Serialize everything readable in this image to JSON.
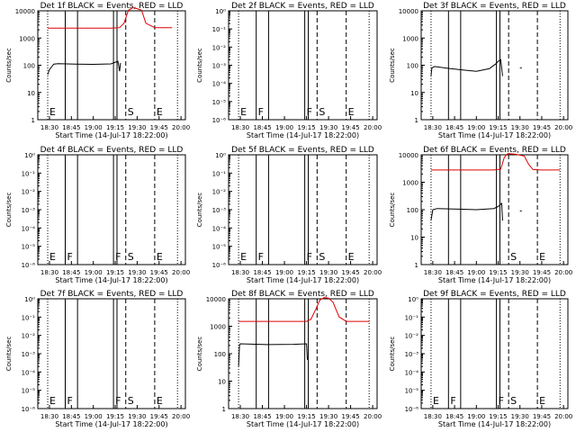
{
  "figure": {
    "xtick_labels": [
      "18:30",
      "18:45",
      "19:00",
      "19:15",
      "19:30",
      "19:45",
      "20:00"
    ],
    "xlabel": "Start Time (14-Jul-17 18:22:00)",
    "ylabel": "Counts/sec",
    "log_ticks_rate": [
      "1",
      "10",
      "100",
      "1000",
      "10000"
    ],
    "log_ticks_empty": [
      "10⁰",
      "10⁻¹",
      "10⁻²",
      "10⁻³",
      "10⁻⁴",
      "10⁻⁵",
      "10⁻⁶"
    ],
    "event_labels": {
      "E": "E",
      "F": "F",
      "S": "S"
    },
    "colors": {
      "events": "#000000",
      "lld": "#e00000"
    }
  },
  "chart_data": [
    {
      "title": "Det 1f BLACK = Events, RED = LLD",
      "type": "line",
      "yscale": "log",
      "ylim": [
        1,
        10000
      ],
      "series": [
        {
          "name": "Events",
          "x": [
            18.48,
            18.5,
            18.55,
            18.6,
            18.8,
            19.0,
            19.2,
            19.28,
            19.3,
            19.31
          ],
          "y": [
            45,
            70,
            110,
            115,
            110,
            108,
            112,
            140,
            60,
            120
          ]
        },
        {
          "name": "LLD",
          "x": [
            18.48,
            18.55,
            19.0,
            19.2,
            19.3,
            19.35,
            19.4,
            19.45,
            19.5,
            19.55,
            19.6,
            19.7,
            19.9
          ],
          "y": [
            2300,
            2300,
            2300,
            2300,
            2400,
            3500,
            10500,
            13000,
            12000,
            10500,
            3500,
            2400,
            2400
          ]
        }
      ],
      "vlines": [
        {
          "x": 18.48,
          "style": "dotted",
          "label": "E"
        },
        {
          "x": 18.68,
          "style": "solid",
          "label": ""
        },
        {
          "x": 18.82,
          "style": "solid",
          "label": ""
        },
        {
          "x": 19.23,
          "style": "solid",
          "label": ""
        },
        {
          "x": 19.27,
          "style": "solid",
          "label": ""
        },
        {
          "x": 19.37,
          "style": "dashed",
          "label": "S"
        },
        {
          "x": 19.7,
          "style": "dashed",
          "label": "E"
        },
        {
          "x": 19.96,
          "style": "dotted",
          "label": ""
        }
      ]
    },
    {
      "title": "Det 2f BLACK = Events, RED = LLD",
      "type": "line",
      "yscale": "log",
      "ylim": [
        1e-06,
        1
      ],
      "series": [],
      "vlines": [
        {
          "x": 18.48,
          "style": "dotted",
          "label": "E"
        },
        {
          "x": 18.68,
          "style": "solid",
          "label": "F"
        },
        {
          "x": 18.82,
          "style": "solid",
          "label": ""
        },
        {
          "x": 19.23,
          "style": "solid",
          "label": "F"
        },
        {
          "x": 19.27,
          "style": "solid",
          "label": ""
        },
        {
          "x": 19.37,
          "style": "dashed",
          "label": "S"
        },
        {
          "x": 19.7,
          "style": "dashed",
          "label": "E"
        },
        {
          "x": 19.96,
          "style": "dotted",
          "label": ""
        }
      ]
    },
    {
      "title": "Det 3f BLACK = Events, RED = LLD",
      "type": "line",
      "yscale": "log",
      "ylim": [
        1,
        10000
      ],
      "series": [
        {
          "name": "Events",
          "x": [
            18.48,
            18.49,
            18.52,
            18.7,
            19.0,
            19.15,
            19.22,
            19.25,
            19.28,
            19.3
          ],
          "y": [
            40,
            80,
            90,
            75,
            60,
            75,
            110,
            140,
            160,
            40
          ]
        },
        {
          "name": "Events",
          "x": [
            19.5,
            19.52
          ],
          "y": [
            80,
            80
          ]
        }
      ],
      "vlines": [
        {
          "x": 18.48,
          "style": "dotted",
          "label": ""
        },
        {
          "x": 18.68,
          "style": "solid",
          "label": ""
        },
        {
          "x": 18.82,
          "style": "solid",
          "label": ""
        },
        {
          "x": 19.23,
          "style": "solid",
          "label": ""
        },
        {
          "x": 19.27,
          "style": "solid",
          "label": ""
        },
        {
          "x": 19.37,
          "style": "dashed",
          "label": ""
        },
        {
          "x": 19.7,
          "style": "dashed",
          "label": ""
        },
        {
          "x": 19.96,
          "style": "dotted",
          "label": ""
        }
      ]
    },
    {
      "title": "Det 4f BLACK = Events, RED = LLD",
      "type": "line",
      "yscale": "log",
      "ylim": [
        1e-06,
        1
      ],
      "series": [],
      "vlines": [
        {
          "x": 18.48,
          "style": "dotted",
          "label": "E"
        },
        {
          "x": 18.68,
          "style": "solid",
          "label": "F"
        },
        {
          "x": 18.82,
          "style": "solid",
          "label": ""
        },
        {
          "x": 19.23,
          "style": "solid",
          "label": "F"
        },
        {
          "x": 19.27,
          "style": "solid",
          "label": ""
        },
        {
          "x": 19.37,
          "style": "dashed",
          "label": "S"
        },
        {
          "x": 19.7,
          "style": "dashed",
          "label": "E"
        },
        {
          "x": 19.96,
          "style": "dotted",
          "label": ""
        }
      ]
    },
    {
      "title": "Det 5f BLACK = Events, RED = LLD",
      "type": "line",
      "yscale": "log",
      "ylim": [
        1e-06,
        1
      ],
      "series": [],
      "vlines": [
        {
          "x": 18.48,
          "style": "dotted",
          "label": "E"
        },
        {
          "x": 18.68,
          "style": "solid",
          "label": "F"
        },
        {
          "x": 18.82,
          "style": "solid",
          "label": ""
        },
        {
          "x": 19.23,
          "style": "solid",
          "label": "F"
        },
        {
          "x": 19.27,
          "style": "solid",
          "label": ""
        },
        {
          "x": 19.37,
          "style": "dashed",
          "label": "S"
        },
        {
          "x": 19.7,
          "style": "dashed",
          "label": "E"
        },
        {
          "x": 19.96,
          "style": "dotted",
          "label": ""
        }
      ]
    },
    {
      "title": "Det 6f BLACK = Events, RED = LLD",
      "type": "line",
      "yscale": "log",
      "ylim": [
        1,
        10000
      ],
      "series": [
        {
          "name": "Events",
          "x": [
            18.48,
            18.5,
            18.55,
            18.8,
            19.0,
            19.2,
            19.25,
            19.29,
            19.3
          ],
          "y": [
            40,
            100,
            110,
            105,
            100,
            110,
            130,
            170,
            40
          ]
        },
        {
          "name": "Events",
          "x": [
            19.5,
            19.52
          ],
          "y": [
            90,
            90
          ]
        },
        {
          "name": "LLD",
          "x": [
            18.48,
            18.55,
            19.0,
            19.2,
            19.28,
            19.32,
            19.36,
            19.45,
            19.55,
            19.6,
            19.65,
            19.75,
            19.96
          ],
          "y": [
            2800,
            2800,
            2800,
            2800,
            3000,
            8000,
            11000,
            10500,
            9000,
            4500,
            2900,
            2800,
            2800
          ]
        }
      ],
      "vlines": [
        {
          "x": 18.48,
          "style": "dotted",
          "label": ""
        },
        {
          "x": 18.68,
          "style": "solid",
          "label": ""
        },
        {
          "x": 18.82,
          "style": "solid",
          "label": ""
        },
        {
          "x": 19.23,
          "style": "solid",
          "label": ""
        },
        {
          "x": 19.27,
          "style": "solid",
          "label": ""
        },
        {
          "x": 19.37,
          "style": "dashed",
          "label": "S"
        },
        {
          "x": 19.7,
          "style": "dashed",
          "label": "E"
        },
        {
          "x": 19.96,
          "style": "dotted",
          "label": ""
        }
      ]
    },
    {
      "title": "Det 7f BLACK = Events, RED = LLD",
      "type": "line",
      "yscale": "log",
      "ylim": [
        1e-06,
        1
      ],
      "series": [],
      "vlines": [
        {
          "x": 18.48,
          "style": "dotted",
          "label": "E"
        },
        {
          "x": 18.68,
          "style": "solid",
          "label": "F"
        },
        {
          "x": 18.82,
          "style": "solid",
          "label": ""
        },
        {
          "x": 19.23,
          "style": "solid",
          "label": "F"
        },
        {
          "x": 19.27,
          "style": "solid",
          "label": ""
        },
        {
          "x": 19.37,
          "style": "dashed",
          "label": "S"
        },
        {
          "x": 19.7,
          "style": "dashed",
          "label": "E"
        },
        {
          "x": 19.96,
          "style": "dotted",
          "label": ""
        }
      ]
    },
    {
      "title": "Det 8f BLACK = Events, RED = LLD",
      "type": "line",
      "yscale": "log",
      "ylim": [
        1,
        10000
      ],
      "series": [
        {
          "name": "Events",
          "x": [
            18.48,
            18.49,
            18.5,
            18.8,
            19.1,
            19.25,
            19.26
          ],
          "y": [
            35,
            200,
            230,
            215,
            220,
            230,
            60
          ]
        },
        {
          "name": "LLD",
          "x": [
            18.48,
            18.6,
            19.0,
            19.25,
            19.3,
            19.36,
            19.4,
            19.45,
            19.5,
            19.55,
            19.62,
            19.7,
            19.96
          ],
          "y": [
            1500,
            1500,
            1500,
            1500,
            1800,
            4500,
            9000,
            11000,
            10500,
            7500,
            2200,
            1500,
            1500
          ]
        }
      ],
      "vlines": [
        {
          "x": 18.48,
          "style": "dotted",
          "label": ""
        },
        {
          "x": 18.68,
          "style": "solid",
          "label": ""
        },
        {
          "x": 18.82,
          "style": "solid",
          "label": ""
        },
        {
          "x": 19.23,
          "style": "solid",
          "label": ""
        },
        {
          "x": 19.27,
          "style": "solid",
          "label": ""
        },
        {
          "x": 19.37,
          "style": "dashed",
          "label": ""
        },
        {
          "x": 19.7,
          "style": "dashed",
          "label": ""
        },
        {
          "x": 19.96,
          "style": "dotted",
          "label": ""
        }
      ]
    },
    {
      "title": "Det 9f BLACK = Events, RED = LLD",
      "type": "line",
      "yscale": "log",
      "ylim": [
        1e-06,
        1
      ],
      "series": [],
      "vlines": [
        {
          "x": 18.48,
          "style": "dotted",
          "label": "E"
        },
        {
          "x": 18.68,
          "style": "solid",
          "label": "F"
        },
        {
          "x": 18.82,
          "style": "solid",
          "label": ""
        },
        {
          "x": 19.23,
          "style": "solid",
          "label": "F"
        },
        {
          "x": 19.27,
          "style": "solid",
          "label": ""
        },
        {
          "x": 19.37,
          "style": "dashed",
          "label": "S"
        },
        {
          "x": 19.7,
          "style": "dashed",
          "label": "E"
        },
        {
          "x": 19.96,
          "style": "dotted",
          "label": ""
        }
      ]
    }
  ]
}
